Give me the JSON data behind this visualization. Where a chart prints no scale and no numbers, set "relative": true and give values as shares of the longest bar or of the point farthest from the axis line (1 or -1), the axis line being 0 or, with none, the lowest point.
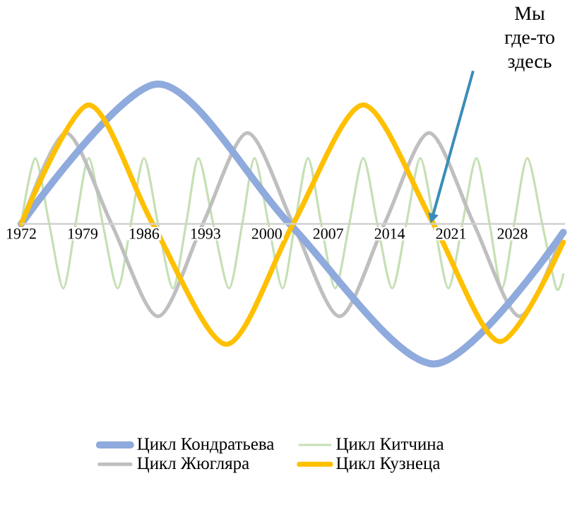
{
  "chart_data": {
    "type": "line",
    "relative": true,
    "xlim": [
      1972,
      2034
    ],
    "xticks": [
      1972,
      1979,
      1986,
      1993,
      2000,
      2007,
      2014,
      2021,
      2028
    ],
    "marker": "none",
    "legend": "bottom",
    "series": [
      {
        "name": "Цикл Кондратьева",
        "color": "#8faadc",
        "x": [
          1972,
          1987.6,
          2002.6,
          2019,
          2033.8
        ],
        "values": [
          0,
          1,
          0,
          -1,
          -0.06
        ]
      },
      {
        "name": "Цикл Китчина",
        "color": "#c5e0b4",
        "x": [
          1972,
          1973.6,
          1975.2,
          1976.8,
          1978.2,
          1979.7,
          1981.3,
          1983,
          1984.5,
          1986,
          1987.6,
          1989.3,
          1990.8,
          1992.2,
          1993.9,
          1995.7,
          1997.2,
          1998.6,
          2000.2,
          2001.8,
          2003.2,
          2004.7,
          2006.2,
          2007.8,
          2009.4,
          2011,
          2012.6,
          2014.3,
          2015.9,
          2017.5,
          2019.1,
          2020.7,
          2022.3,
          2023.9,
          2025.4,
          2026.8,
          2028.2,
          2029.7,
          2031.4,
          2033,
          2033.8
        ],
        "values": [
          0,
          0.47,
          0,
          -0.46,
          0,
          0.47,
          0,
          -0.46,
          0,
          0.47,
          0,
          -0.46,
          0,
          0.47,
          0,
          -0.46,
          0,
          0.47,
          0,
          -0.46,
          0,
          0.47,
          0,
          -0.46,
          0,
          0.47,
          0,
          -0.46,
          0,
          0.47,
          0,
          -0.46,
          0,
          0.47,
          0,
          -0.46,
          0,
          0.47,
          0,
          -0.46,
          -0.36
        ]
      },
      {
        "name": "Цикл Жюгляра",
        "color": "#bfbfbf",
        "x": [
          1972,
          1977.1,
          1982.3,
          1987.6,
          1992.7,
          1997.8,
          2003,
          2008.3,
          2013.4,
          2018.5,
          2023.6,
          2028.8,
          2033.8
        ],
        "values": [
          0,
          0.65,
          0,
          -0.66,
          0,
          0.65,
          0,
          -0.66,
          0,
          0.65,
          0,
          -0.66,
          -0.06
        ]
      },
      {
        "name": "Цикл Кузнеца",
        "color": "#ffc000",
        "x": [
          1972,
          1979.7,
          1987,
          1995.4,
          2003,
          2011,
          2019,
          2026.5,
          2033.8
        ],
        "values": [
          0,
          0.85,
          0,
          -0.86,
          0,
          0.85,
          0,
          -0.84,
          -0.13
        ]
      }
    ],
    "annotations": [
      "Мы где-то здесь"
    ]
  }
}
